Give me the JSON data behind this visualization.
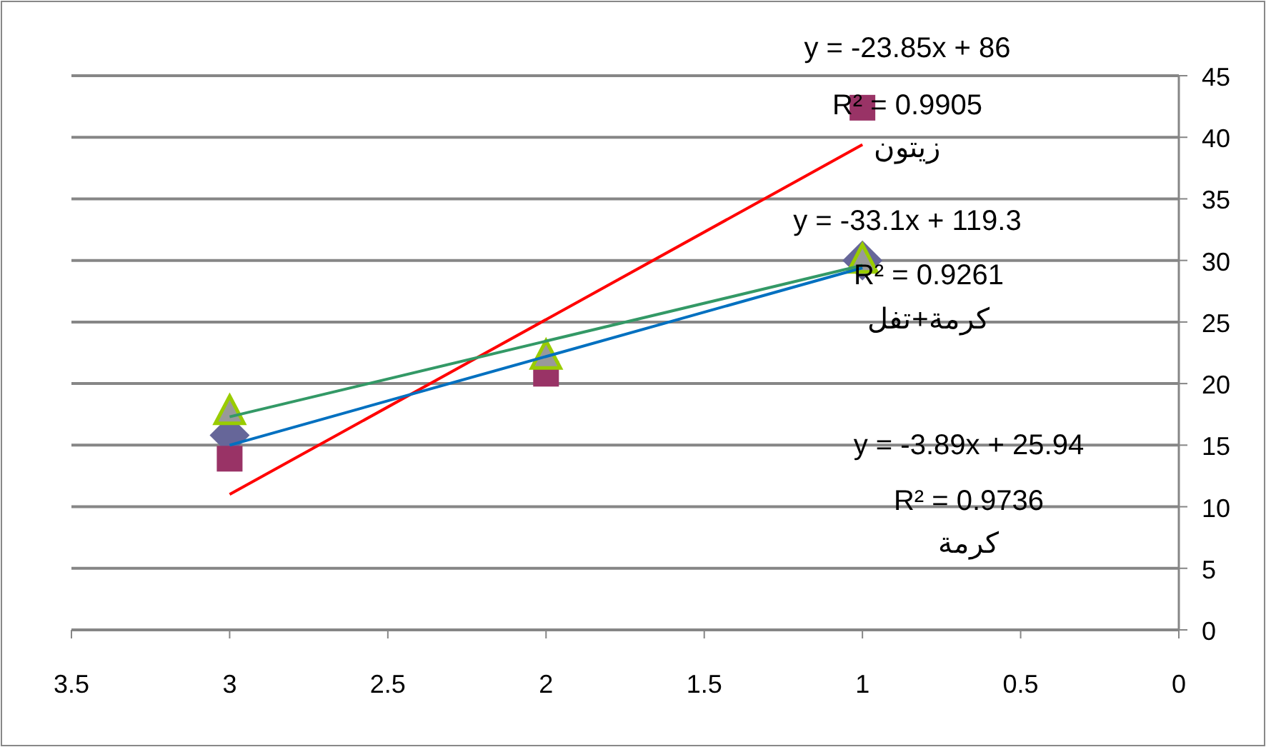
{
  "chart_data": {
    "type": "scatter",
    "xlim": [
      3.5,
      0
    ],
    "xticks": [
      3.5,
      3,
      2.5,
      2,
      1.5,
      1,
      0.5,
      0
    ],
    "ylim": [
      0,
      45
    ],
    "yticks": [
      0,
      5,
      10,
      15,
      20,
      25,
      30,
      35,
      40,
      45
    ],
    "grid": "y",
    "series": [
      {
        "marker": "diamond",
        "color": "#666699",
        "x": [
          3,
          1
        ],
        "values": [
          15.8,
          30
        ]
      },
      {
        "marker": "square",
        "color": "#993366",
        "x": [
          3,
          2,
          1
        ],
        "values": [
          13.9,
          20.8,
          42.4
        ]
      },
      {
        "marker": "triangle",
        "color": "#99cc00",
        "x": [
          3,
          2,
          1
        ],
        "values": [
          17.7,
          22.2,
          30
        ]
      },
      {
        "type": "line",
        "color": "#ff0000",
        "x": [
          3,
          1
        ],
        "values": [
          11,
          39.4
        ]
      },
      {
        "type": "line",
        "color": "#0070c0",
        "x": [
          3,
          1
        ],
        "values": [
          15,
          29.4
        ]
      },
      {
        "type": "line",
        "color": "#339966",
        "x": [
          3,
          1
        ],
        "values": [
          17.3,
          29.6
        ]
      }
    ],
    "annotations": [
      "y = -23.85x + 86",
      "R² = 0.9905",
      "زيتون",
      "y = -33.1x + 119.3",
      "R² = 0.9261",
      "كرمة+تفل",
      "y = -3.89x + 25.94",
      "R² = 0.9736",
      "كرمة"
    ]
  }
}
